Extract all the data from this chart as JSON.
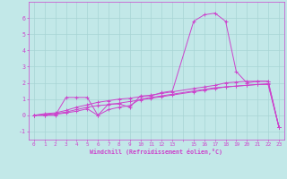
{
  "bg_color": "#c2e8e8",
  "grid_color": "#a8d4d4",
  "line_color": "#cc44cc",
  "spine_color": "#cc44cc",
  "xlim": [
    -0.5,
    23.5
  ],
  "ylim": [
    -1.5,
    7.0
  ],
  "yticks": [
    -1,
    0,
    1,
    2,
    3,
    4,
    5,
    6
  ],
  "xtick_labels": [
    "0",
    "1",
    "2",
    "3",
    "4",
    "5",
    "6",
    "7",
    "8",
    "9",
    "10",
    "11",
    "12",
    "13",
    "",
    "15",
    "16",
    "17",
    "18",
    "19",
    "20",
    "21",
    "22",
    "23"
  ],
  "xtick_positions": [
    0,
    1,
    2,
    3,
    4,
    5,
    6,
    7,
    8,
    9,
    10,
    11,
    12,
    13,
    14,
    15,
    16,
    17,
    18,
    19,
    20,
    21,
    22,
    23
  ],
  "xlabel": "Windchill (Refroidissement éolien,°C)",
  "series1": {
    "x": [
      0,
      1,
      2,
      3,
      4,
      5,
      6,
      7,
      8,
      9,
      10,
      11,
      12,
      13,
      15,
      16,
      17,
      18,
      19,
      20,
      21,
      22,
      23
    ],
    "y": [
      0.0,
      0.0,
      0.0,
      1.1,
      1.1,
      1.1,
      0.0,
      0.7,
      0.7,
      0.5,
      1.2,
      1.2,
      1.4,
      1.5,
      5.8,
      6.2,
      6.3,
      5.8,
      2.7,
      2.0,
      2.1,
      2.1,
      -0.7
    ]
  },
  "series2": {
    "x": [
      0,
      1,
      2,
      3,
      4,
      5,
      6,
      7,
      8,
      9,
      10,
      11,
      12,
      13,
      15,
      16,
      17,
      18,
      19,
      20,
      21,
      22,
      23
    ],
    "y": [
      0.0,
      0.1,
      0.15,
      0.3,
      0.5,
      0.65,
      0.8,
      0.9,
      1.0,
      1.05,
      1.15,
      1.25,
      1.35,
      1.45,
      1.65,
      1.75,
      1.85,
      2.0,
      2.05,
      2.1,
      2.1,
      2.1,
      -0.7
    ]
  },
  "series3": {
    "x": [
      0,
      1,
      2,
      3,
      4,
      5,
      6,
      7,
      8,
      9,
      10,
      11,
      12,
      13,
      15,
      16,
      17,
      18,
      19,
      20,
      21,
      22,
      23
    ],
    "y": [
      0.0,
      0.05,
      0.1,
      0.2,
      0.35,
      0.5,
      0.6,
      0.65,
      0.75,
      0.85,
      0.95,
      1.05,
      1.15,
      1.25,
      1.45,
      1.55,
      1.65,
      1.75,
      1.8,
      1.85,
      1.9,
      1.95,
      -0.7
    ]
  },
  "series4": {
    "x": [
      0,
      1,
      2,
      3,
      4,
      5,
      6,
      7,
      8,
      9,
      10,
      11,
      12,
      13,
      15,
      16,
      17,
      18,
      19,
      20,
      21,
      22,
      23
    ],
    "y": [
      0.0,
      0.0,
      0.05,
      0.15,
      0.25,
      0.4,
      0.0,
      0.35,
      0.5,
      0.6,
      1.0,
      1.1,
      1.2,
      1.3,
      1.5,
      1.6,
      1.7,
      1.75,
      1.8,
      1.85,
      1.9,
      1.9,
      -0.7
    ]
  }
}
